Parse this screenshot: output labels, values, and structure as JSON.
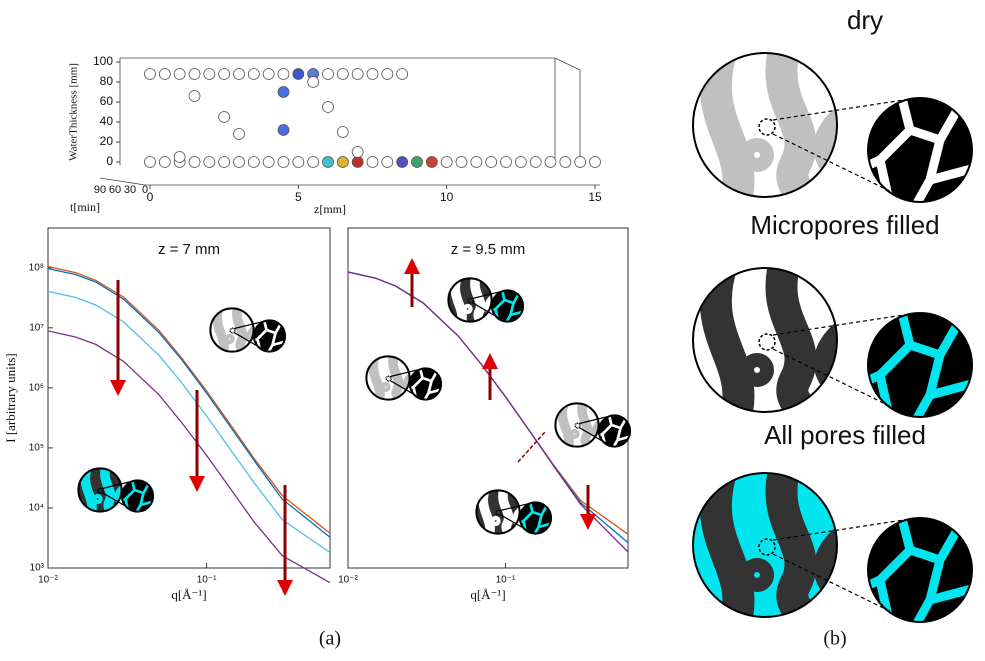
{
  "chart_data": [
    {
      "type": "scatter",
      "ylabel": "WaterThickness [mm]",
      "xlabel": "z[mm]",
      "tlabel": "t[min]",
      "x": [
        0,
        0.5,
        1,
        1.5,
        2,
        2.5,
        3,
        3.5,
        4,
        4.5,
        5,
        5.5,
        6,
        6.5,
        7,
        7.5,
        8,
        8.5,
        0,
        0.5,
        1,
        1.5,
        2,
        2.5,
        3,
        3.5,
        4,
        4.5,
        5,
        5.5,
        6,
        6.5,
        7,
        7.5,
        8,
        8.5,
        9,
        9.5,
        10,
        10.5,
        11,
        11.5,
        12,
        12.5,
        13,
        13.5,
        14,
        14.5,
        15,
        1.5,
        2.5,
        3,
        4.5,
        4.5,
        5.5,
        6,
        6.5,
        7,
        1
      ],
      "values": [
        88,
        88,
        88,
        88,
        88,
        88,
        88,
        88,
        88,
        88,
        88,
        88,
        88,
        88,
        88,
        88,
        88,
        88,
        0,
        0,
        0,
        0,
        0,
        0,
        0,
        0,
        0,
        0,
        0,
        0,
        0,
        0,
        0,
        0,
        0,
        0,
        0,
        0,
        0,
        0,
        0,
        0,
        0,
        0,
        0,
        0,
        0,
        0,
        0,
        66,
        45,
        28,
        70,
        32,
        80,
        55,
        30,
        10,
        5
      ],
      "point_colors": [
        "#ffffff",
        "#ffffff",
        "#ffffff",
        "#ffffff",
        "#ffffff",
        "#ffffff",
        "#ffffff",
        "#ffffff",
        "#ffffff",
        "#ffffff",
        "#3a55c8",
        "#5a7be0",
        "#ffffff",
        "#ffffff",
        "#ffffff",
        "#ffffff",
        "#ffffff",
        "#ffffff",
        "#ffffff",
        "#ffffff",
        "#ffffff",
        "#ffffff",
        "#ffffff",
        "#ffffff",
        "#ffffff",
        "#ffffff",
        "#ffffff",
        "#ffffff",
        "#ffffff",
        "#ffffff",
        "#40c0d0",
        "#e0b030",
        "#c0302a",
        "#ffffff",
        "#ffffff",
        "#5050c0",
        "#40a070",
        "#d04030",
        "#ffffff",
        "#ffffff",
        "#ffffff",
        "#ffffff",
        "#ffffff",
        "#ffffff",
        "#ffffff",
        "#ffffff",
        "#ffffff",
        "#ffffff",
        "#ffffff",
        "#ffffff",
        "#ffffff",
        "#ffffff",
        "#4a6fe0",
        "#4a6fe0",
        "#ffffff",
        "#ffffff",
        "#ffffff",
        "#ffffff",
        "#ffffff"
      ],
      "ylim": [
        0,
        100
      ],
      "yticks": [
        0,
        20,
        40,
        60,
        80,
        100
      ],
      "xlim": [
        0,
        15
      ],
      "xticks": [
        0,
        5,
        10,
        15
      ],
      "tlim": [
        0,
        90
      ],
      "tticks": [
        90,
        60,
        30,
        0
      ]
    },
    {
      "type": "line",
      "title": "z = 7 mm",
      "xlabel": "q[Å⁻¹]",
      "ylabel": "I [arbitrary units]",
      "xscale": "log",
      "yscale": "log",
      "x": [
        0.01,
        0.015,
        0.02,
        0.03,
        0.05,
        0.07,
        0.1,
        0.15,
        0.2,
        0.3,
        0.6
      ],
      "xlim": [
        0.01,
        0.6
      ],
      "ylim": [
        1000,
        460000000
      ],
      "xticks": [
        {
          "value": 0.01,
          "label": "10⁻²"
        },
        {
          "value": 0.1,
          "label": "10⁻¹"
        }
      ],
      "yticks": [
        {
          "value": 1000,
          "label": "10³"
        },
        {
          "value": 10000,
          "label": "10⁴"
        },
        {
          "value": 100000,
          "label": "10⁵"
        },
        {
          "value": 1000000,
          "label": "10⁶"
        },
        {
          "value": 10000000,
          "label": "10⁷"
        },
        {
          "value": 100000000,
          "label": "10⁸"
        }
      ],
      "series": [
        {
          "color": "#d95319",
          "values": [
            105000000,
            83000000,
            62000000,
            32500000,
            9100000,
            3100000,
            890000,
            196000,
            66000,
            16000,
            3800
          ]
        },
        {
          "color": "#0072bd",
          "values": [
            97000000,
            77000000,
            58000000,
            30000000,
            8400000,
            2900000,
            820000,
            180000,
            61000,
            14000,
            3250
          ]
        },
        {
          "color": "#4dbeee",
          "values": [
            40500000,
            32000000,
            24000000,
            12500000,
            3500000,
            1200000,
            340000,
            75500,
            26000,
            6400,
            1810
          ]
        },
        {
          "color": "#7e2f8e",
          "values": [
            8900000,
            7000000,
            5300000,
            2750000,
            770000,
            260000,
            75000,
            16800,
            5800,
            1600,
            570
          ]
        }
      ]
    },
    {
      "type": "line",
      "title": "z = 9.5 mm",
      "xlabel": "q[Å⁻¹]",
      "xscale": "log",
      "yscale": "log",
      "x": [
        0.01,
        0.015,
        0.02,
        0.03,
        0.05,
        0.07,
        0.1,
        0.15,
        0.2,
        0.3,
        0.6
      ],
      "xlim": [
        0.01,
        0.6
      ],
      "ylim": [
        1000,
        460000000
      ],
      "xticks": [
        {
          "value": 0.01,
          "label": "10⁻²"
        },
        {
          "value": 0.1,
          "label": "10⁻¹"
        }
      ],
      "series": [
        {
          "color": "#d95319",
          "values": [
            85000000,
            67000000,
            50000000,
            26000000,
            7350000,
            2500000,
            713000,
            158000,
            54000,
            13300,
            3650
          ]
        },
        {
          "color": "#0072bd",
          "values": [
            85000000,
            67000000,
            50000000,
            26000000,
            7350000,
            2500000,
            712000,
            157000,
            53000,
            12300,
            2650
          ]
        },
        {
          "color": "#7e2f8e",
          "values": [
            85000000,
            67000000,
            50000000,
            26000000,
            7350000,
            2500000,
            711000,
            156000,
            52000,
            11500,
            1850
          ]
        }
      ]
    }
  ],
  "diagram": {
    "labels": [
      "dry",
      "Micropores filled",
      "All pores filled"
    ]
  },
  "panel_labels": [
    "(a)",
    "(b)"
  ]
}
